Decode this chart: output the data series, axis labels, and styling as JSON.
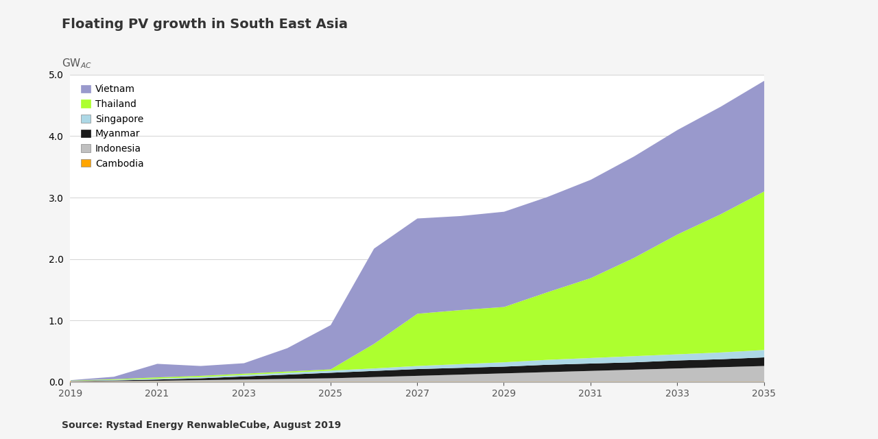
{
  "title": "Floating PV growth in South East Asia",
  "source": "Source: Rystad Energy RenwableCube, August 2019",
  "years": [
    2019,
    2020,
    2021,
    2022,
    2023,
    2024,
    2025,
    2026,
    2027,
    2028,
    2029,
    2030,
    2031,
    2032,
    2033,
    2034,
    2035
  ],
  "series": {
    "Cambodia": [
      0.005,
      0.005,
      0.005,
      0.005,
      0.005,
      0.005,
      0.005,
      0.005,
      0.005,
      0.005,
      0.005,
      0.005,
      0.005,
      0.005,
      0.005,
      0.005,
      0.005
    ],
    "Indonesia": [
      0.01,
      0.015,
      0.02,
      0.03,
      0.04,
      0.05,
      0.06,
      0.08,
      0.1,
      0.12,
      0.14,
      0.16,
      0.18,
      0.2,
      0.22,
      0.24,
      0.26
    ],
    "Myanmar": [
      0.005,
      0.01,
      0.02,
      0.03,
      0.05,
      0.07,
      0.09,
      0.1,
      0.11,
      0.11,
      0.11,
      0.12,
      0.12,
      0.12,
      0.13,
      0.13,
      0.14
    ],
    "Singapore": [
      0.005,
      0.01,
      0.015,
      0.02,
      0.025,
      0.03,
      0.035,
      0.04,
      0.05,
      0.06,
      0.07,
      0.08,
      0.09,
      0.1,
      0.1,
      0.11,
      0.12
    ],
    "Thailand": [
      0.005,
      0.01,
      0.02,
      0.02,
      0.02,
      0.02,
      0.02,
      0.4,
      0.85,
      0.88,
      0.9,
      1.1,
      1.3,
      1.6,
      1.95,
      2.25,
      2.58
    ],
    "Vietnam": [
      0.005,
      0.04,
      0.22,
      0.16,
      0.17,
      0.38,
      0.72,
      1.55,
      1.55,
      1.53,
      1.55,
      1.55,
      1.6,
      1.65,
      1.7,
      1.75,
      1.8
    ]
  },
  "colors": {
    "Cambodia": "#FFA500",
    "Indonesia": "#C0C0C0",
    "Myanmar": "#1a1a1a",
    "Singapore": "#ADD8E6",
    "Thailand": "#ADFF2F",
    "Vietnam": "#9999CC"
  },
  "ylim": [
    0,
    5.0
  ],
  "yticks": [
    0.0,
    1.0,
    2.0,
    3.0,
    4.0,
    5.0
  ],
  "xticks": [
    2019,
    2021,
    2023,
    2025,
    2027,
    2029,
    2031,
    2033,
    2035
  ],
  "xlim": [
    2019,
    2035
  ],
  "bg_color": "#f5f5f5",
  "plot_bg_color": "#ffffff",
  "title_fontsize": 14,
  "tick_fontsize": 10,
  "legend_fontsize": 10
}
